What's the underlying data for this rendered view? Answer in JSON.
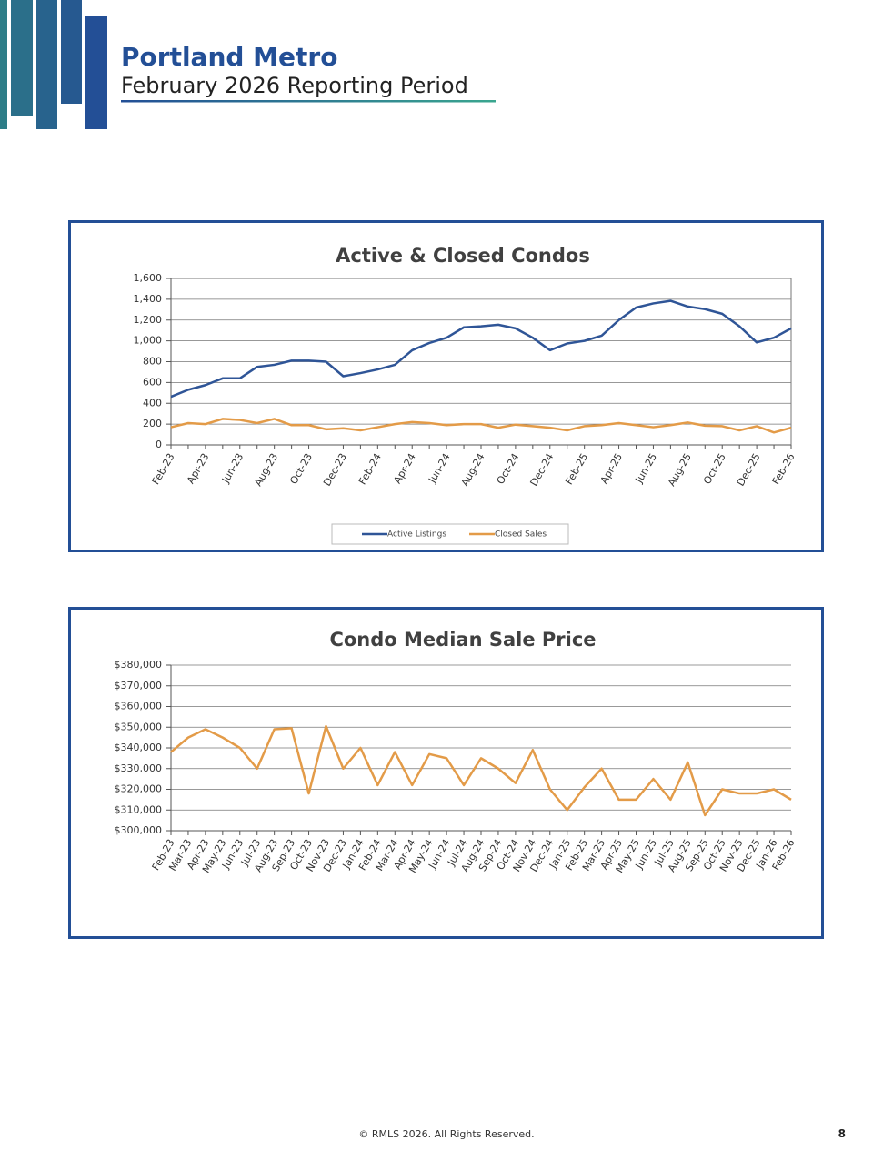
{
  "header": {
    "title": "Portland Metro",
    "subtitle": "February 2026 Reporting Period"
  },
  "footer": {
    "copyright": "© RMLS 2026. All Rights Reserved.",
    "page": "8"
  },
  "chart_data": [
    {
      "type": "line",
      "title": "Active & Closed Condos",
      "categories": [
        "Feb-23",
        null,
        "Apr-23",
        null,
        "Jun-23",
        null,
        "Aug-23",
        null,
        "Oct-23",
        null,
        "Dec-23",
        null,
        "Feb-24",
        null,
        "Apr-24",
        null,
        "Jun-24",
        null,
        "Aug-24",
        null,
        "Oct-24",
        null,
        "Dec-24",
        null,
        "Feb-25",
        null,
        "Apr-25",
        null,
        "Jun-25",
        null,
        "Aug-25",
        null,
        "Oct-25",
        null,
        "Dec-25",
        null,
        "Feb-26"
      ],
      "series": [
        {
          "name": "Active Listings",
          "color": "#2f5597",
          "values": [
            463,
            530,
            575,
            640,
            640,
            750,
            770,
            810,
            810,
            800,
            660,
            690,
            725,
            770,
            910,
            980,
            1030,
            1130,
            1140,
            1155,
            1120,
            1030,
            910,
            975,
            1000,
            1050,
            1200,
            1320,
            1360,
            1385,
            1330,
            1305,
            1260,
            1140,
            985,
            1030,
            1120
          ]
        },
        {
          "name": "Closed Sales",
          "color": "#e39b48",
          "values": [
            170,
            210,
            200,
            250,
            240,
            210,
            250,
            190,
            190,
            150,
            160,
            140,
            170,
            200,
            220,
            210,
            190,
            200,
            200,
            165,
            195,
            180,
            165,
            140,
            180,
            190,
            210,
            190,
            170,
            190,
            215,
            185,
            180,
            140,
            180,
            120,
            165
          ]
        }
      ],
      "ylim": [
        0,
        1600
      ],
      "yticks": [
        0,
        200,
        400,
        600,
        800,
        {
          "value": 1000,
          "label": "1,000"
        },
        {
          "value": 1200,
          "label": "1,200"
        },
        {
          "value": 1400,
          "label": "1,400"
        },
        {
          "value": 1600,
          "label": "1,600"
        }
      ],
      "grid": true,
      "legend": "bottom"
    },
    {
      "type": "line",
      "title": "Condo Median Sale Price",
      "categories": [
        "Feb-23",
        "Mar-23",
        "Apr-23",
        "May-23",
        "Jun-23",
        "Jul-23",
        "Aug-23",
        "Sep-23",
        "Oct-23",
        "Nov-23",
        "Dec-23",
        "Jan-24",
        "Feb-24",
        "Mar-24",
        "Apr-24",
        "May-24",
        "Jun-24",
        "Jul-24",
        "Aug-24",
        "Sep-24",
        "Oct-24",
        "Nov-24",
        "Dec-24",
        "Jan-25",
        "Feb-25",
        "Mar-25",
        "Apr-25",
        "May-25",
        "Jun-25",
        "Jul-25",
        "Aug-25",
        "Sep-25",
        "Oct-25",
        "Nov-25",
        "Dec-25",
        "Jan-26",
        "Feb-26"
      ],
      "series": [
        {
          "name": "Median Sale Price",
          "color": "#e39b48",
          "values": [
            338000,
            345000,
            349000,
            345000,
            340000,
            330000,
            349000,
            349500,
            318000,
            350500,
            330000,
            340000,
            322000,
            338000,
            322000,
            337000,
            335000,
            322000,
            335000,
            330000,
            323000,
            339000,
            320000,
            310000,
            321000,
            330000,
            315000,
            315000,
            325000,
            315000,
            333000,
            307500,
            320000,
            318000,
            318000,
            320000,
            315000
          ]
        }
      ],
      "ylim": [
        300000,
        380000
      ],
      "yticks": [
        {
          "value": 300000,
          "label": "$300,000"
        },
        {
          "value": 310000,
          "label": "$310,000"
        },
        {
          "value": 320000,
          "label": "$320,000"
        },
        {
          "value": 330000,
          "label": "$330,000"
        },
        {
          "value": 340000,
          "label": "$340,000"
        },
        {
          "value": 350000,
          "label": "$350,000"
        },
        {
          "value": 360000,
          "label": "$360,000"
        },
        {
          "value": 370000,
          "label": "$370,000"
        },
        {
          "value": 380000,
          "label": "$380,000"
        }
      ],
      "grid": true
    }
  ]
}
